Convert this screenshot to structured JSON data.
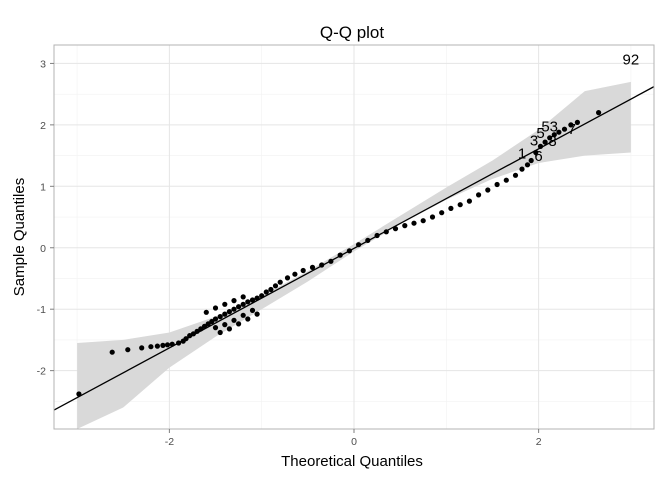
{
  "chart_data": {
    "type": "scatter",
    "title": "Q-Q plot",
    "xlabel": "Theoretical Quantiles",
    "ylabel": "Sample Quantiles",
    "xlim": [
      -3.25,
      3.25
    ],
    "ylim": [
      -2.95,
      3.3
    ],
    "x_ticks": [
      -2,
      0,
      2
    ],
    "y_ticks": [
      -2,
      -1,
      0,
      1,
      2,
      3
    ],
    "x_tick_labels": [
      "-2",
      "0",
      "2"
    ],
    "y_tick_labels": [
      "-2",
      "-1",
      "0",
      "1",
      "2",
      "3"
    ],
    "grid": true,
    "reference_line": {
      "intercept": -0.01,
      "slope": 0.81
    },
    "confidence_band": {
      "x": [
        -3.0,
        -2.5,
        -2.0,
        -1.5,
        -1.0,
        -0.5,
        0.0,
        0.5,
        1.0,
        1.5,
        2.0,
        2.5,
        3.0
      ],
      "lower": [
        -3.6,
        -2.6,
        -1.95,
        -1.45,
        -1.0,
        -0.55,
        -0.06,
        0.38,
        0.78,
        1.12,
        1.38,
        1.5,
        1.55
      ],
      "upper": [
        -1.55,
        -1.5,
        -1.38,
        -1.12,
        -0.78,
        -0.38,
        0.06,
        0.52,
        0.98,
        1.42,
        1.92,
        2.55,
        2.7
      ]
    },
    "points": [
      [
        -2.98,
        -2.38
      ],
      [
        -2.62,
        -1.7
      ],
      [
        -2.45,
        -1.66
      ],
      [
        -2.3,
        -1.63
      ],
      [
        -2.2,
        -1.61
      ],
      [
        -2.13,
        -1.6
      ],
      [
        -2.07,
        -1.59
      ],
      [
        -2.02,
        -1.58
      ],
      [
        -1.97,
        -1.57
      ],
      [
        -1.9,
        -1.55
      ],
      [
        -1.85,
        -1.52
      ],
      [
        -1.82,
        -1.48
      ],
      [
        -1.78,
        -1.43
      ],
      [
        -1.74,
        -1.4
      ],
      [
        -1.7,
        -1.36
      ],
      [
        -1.66,
        -1.32
      ],
      [
        -1.62,
        -1.28
      ],
      [
        -1.58,
        -1.24
      ],
      [
        -1.54,
        -1.2
      ],
      [
        -1.5,
        -1.16
      ],
      [
        -1.45,
        -1.12
      ],
      [
        -1.4,
        -1.08
      ],
      [
        -1.35,
        -1.04
      ],
      [
        -1.3,
        -1.0
      ],
      [
        -1.25,
        -0.96
      ],
      [
        -1.2,
        -0.92
      ],
      [
        -1.15,
        -0.88
      ],
      [
        -1.1,
        -0.85
      ],
      [
        -1.05,
        -0.82
      ],
      [
        -1.5,
        -1.3
      ],
      [
        -1.4,
        -1.25
      ],
      [
        -1.3,
        -1.18
      ],
      [
        -1.2,
        -1.1
      ],
      [
        -1.1,
        -1.02
      ],
      [
        -1.6,
        -1.05
      ],
      [
        -1.5,
        -0.98
      ],
      [
        -1.4,
        -0.92
      ],
      [
        -1.3,
        -0.86
      ],
      [
        -1.2,
        -0.8
      ],
      [
        -1.45,
        -1.38
      ],
      [
        -1.35,
        -1.32
      ],
      [
        -1.25,
        -1.24
      ],
      [
        -1.15,
        -1.16
      ],
      [
        -1.05,
        -1.08
      ],
      [
        -1.0,
        -0.78
      ],
      [
        -0.95,
        -0.72
      ],
      [
        -0.9,
        -0.68
      ],
      [
        -0.85,
        -0.62
      ],
      [
        -0.8,
        -0.56
      ],
      [
        -0.72,
        -0.49
      ],
      [
        -0.64,
        -0.43
      ],
      [
        -0.55,
        -0.37
      ],
      [
        -0.45,
        -0.32
      ],
      [
        -0.35,
        -0.28
      ],
      [
        -0.25,
        -0.22
      ],
      [
        -0.15,
        -0.12
      ],
      [
        -0.05,
        -0.05
      ],
      [
        0.05,
        0.05
      ],
      [
        0.15,
        0.12
      ],
      [
        0.25,
        0.2
      ],
      [
        0.35,
        0.26
      ],
      [
        0.45,
        0.31
      ],
      [
        0.55,
        0.36
      ],
      [
        0.65,
        0.4
      ],
      [
        0.75,
        0.44
      ],
      [
        0.85,
        0.5
      ],
      [
        0.95,
        0.57
      ],
      [
        1.05,
        0.64
      ],
      [
        1.15,
        0.7
      ],
      [
        1.25,
        0.76
      ],
      [
        1.35,
        0.86
      ],
      [
        1.45,
        0.94
      ],
      [
        1.55,
        1.03
      ],
      [
        1.65,
        1.1
      ],
      [
        1.75,
        1.18
      ],
      [
        1.82,
        1.28
      ],
      [
        1.88,
        1.35
      ],
      [
        1.92,
        1.42
      ],
      [
        1.97,
        1.55
      ],
      [
        2.02,
        1.65
      ],
      [
        2.07,
        1.72
      ],
      [
        2.12,
        1.79
      ],
      [
        2.17,
        1.84
      ],
      [
        2.22,
        1.88
      ],
      [
        2.28,
        1.93
      ],
      [
        2.35,
        2.0
      ],
      [
        2.42,
        2.04
      ],
      [
        2.65,
        2.2
      ]
    ],
    "point_labels": [
      {
        "text": "92",
        "x": 3.0,
        "y": 3.05
      },
      {
        "text": "53",
        "x": 2.12,
        "y": 1.96
      },
      {
        "text": "7",
        "x": 2.36,
        "y": 1.92
      },
      {
        "text": "5",
        "x": 2.02,
        "y": 1.85
      },
      {
        "text": "3",
        "x": 1.95,
        "y": 1.73
      },
      {
        "text": "8",
        "x": 2.15,
        "y": 1.72
      },
      {
        "text": "1",
        "x": 1.82,
        "y": 1.52
      },
      {
        "text": "6",
        "x": 2.0,
        "y": 1.48
      }
    ]
  }
}
